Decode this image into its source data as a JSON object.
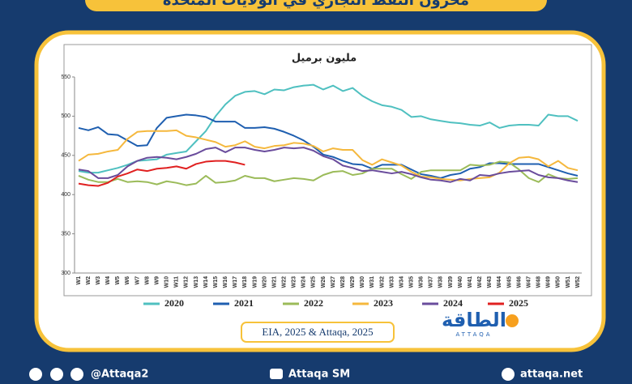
{
  "header": {
    "title": "مخزون النفط التجاري في الولايات المتحدة"
  },
  "chart_data": {
    "type": "line",
    "subtitle": "مليون برميل",
    "categories": [
      "W1",
      "W2",
      "W3",
      "W4",
      "W5",
      "W6",
      "W7",
      "W8",
      "W9",
      "W10",
      "W11",
      "W12",
      "W13",
      "W14",
      "W15",
      "W16",
      "W17",
      "W18",
      "W19",
      "W20",
      "W21",
      "W22",
      "W23",
      "W24",
      "W25",
      "W26",
      "W27",
      "W28",
      "W29",
      "W30",
      "W31",
      "W32",
      "W33",
      "W34",
      "W35",
      "W36",
      "W37",
      "W38",
      "W39",
      "W40",
      "W41",
      "W42",
      "W43",
      "W44",
      "W45",
      "W46",
      "W47",
      "W48",
      "W49",
      "W50",
      "W51",
      "W52"
    ],
    "ylim": [
      300,
      550
    ],
    "yticks": [
      300,
      350,
      400,
      450,
      500,
      550
    ],
    "grid": false,
    "series": [
      {
        "name": "2020",
        "color": "#4fc0c0",
        "values": [
          430,
          428,
          428,
          431,
          434,
          438,
          443,
          444,
          445,
          451,
          453,
          455,
          468,
          481,
          500,
          515,
          526,
          531,
          532,
          528,
          534,
          533,
          537,
          539,
          540,
          534,
          539,
          532,
          536,
          526,
          519,
          514,
          512,
          508,
          499,
          500,
          496,
          494,
          492,
          491,
          489,
          488,
          492,
          485,
          488,
          489,
          489,
          488,
          502,
          500,
          500,
          494
        ]
      },
      {
        "name": "2021",
        "color": "#1f5fb0",
        "values": [
          485,
          482,
          486,
          477,
          476,
          469,
          462,
          463,
          485,
          498,
          500,
          502,
          501,
          499,
          493,
          493,
          493,
          485,
          485,
          486,
          484,
          480,
          475,
          469,
          461,
          451,
          448,
          443,
          439,
          438,
          433,
          438,
          438,
          438,
          432,
          426,
          424,
          421,
          425,
          427,
          433,
          435,
          440,
          440,
          439,
          439,
          439,
          439,
          435,
          431,
          427,
          424
        ]
      },
      {
        "name": "2022",
        "color": "#9bbb59",
        "values": [
          424,
          419,
          416,
          416,
          420,
          416,
          417,
          416,
          413,
          417,
          415,
          412,
          414,
          424,
          415,
          416,
          418,
          424,
          421,
          421,
          417,
          419,
          421,
          420,
          418,
          425,
          429,
          430,
          425,
          427,
          433,
          433,
          433,
          426,
          420,
          429,
          431,
          431,
          431,
          431,
          438,
          437,
          438,
          442,
          441,
          432,
          421,
          416,
          426,
          421,
          420,
          421
        ]
      },
      {
        "name": "2023",
        "color": "#f5b83d",
        "values": [
          443,
          451,
          452,
          455,
          457,
          471,
          480,
          481,
          481,
          481,
          482,
          475,
          473,
          470,
          467,
          461,
          463,
          468,
          461,
          459,
          462,
          463,
          466,
          465,
          462,
          455,
          459,
          457,
          457,
          444,
          438,
          445,
          441,
          437,
          429,
          423,
          422,
          420,
          419,
          418,
          420,
          421,
          422,
          428,
          440,
          447,
          448,
          445,
          436,
          443,
          434,
          431
        ]
      },
      {
        "name": "2024",
        "color": "#6a4c9c",
        "values": [
          432,
          430,
          421,
          421,
          425,
          436,
          443,
          447,
          448,
          447,
          445,
          448,
          452,
          458,
          460,
          454,
          460,
          460,
          457,
          455,
          457,
          460,
          459,
          460,
          456,
          449,
          445,
          437,
          434,
          430,
          431,
          429,
          427,
          429,
          426,
          422,
          419,
          418,
          416,
          420,
          418,
          425,
          424,
          427,
          429,
          430,
          431,
          425,
          422,
          421,
          418,
          416
        ]
      },
      {
        "name": "2025",
        "color": "#e02020",
        "values": [
          414,
          412,
          411,
          415,
          423,
          427,
          432,
          430,
          433,
          434,
          436,
          433,
          439,
          442,
          443,
          443,
          441,
          438,
          null,
          null,
          null,
          null,
          null,
          null,
          null,
          null,
          null,
          null,
          null,
          null,
          null,
          null,
          null,
          null,
          null,
          null,
          null,
          null,
          null,
          null,
          null,
          null,
          null,
          null,
          null,
          null,
          null,
          null,
          null,
          null,
          null,
          null
        ]
      }
    ]
  },
  "source": "EIA, 2025 & Attaqa, 2025",
  "logo": {
    "arabic": "الطاقة",
    "latin": "ATTAQA"
  },
  "footer": {
    "social": "@Attaqa2",
    "sm": "Attaqa SM",
    "site": "attaqa.net"
  }
}
